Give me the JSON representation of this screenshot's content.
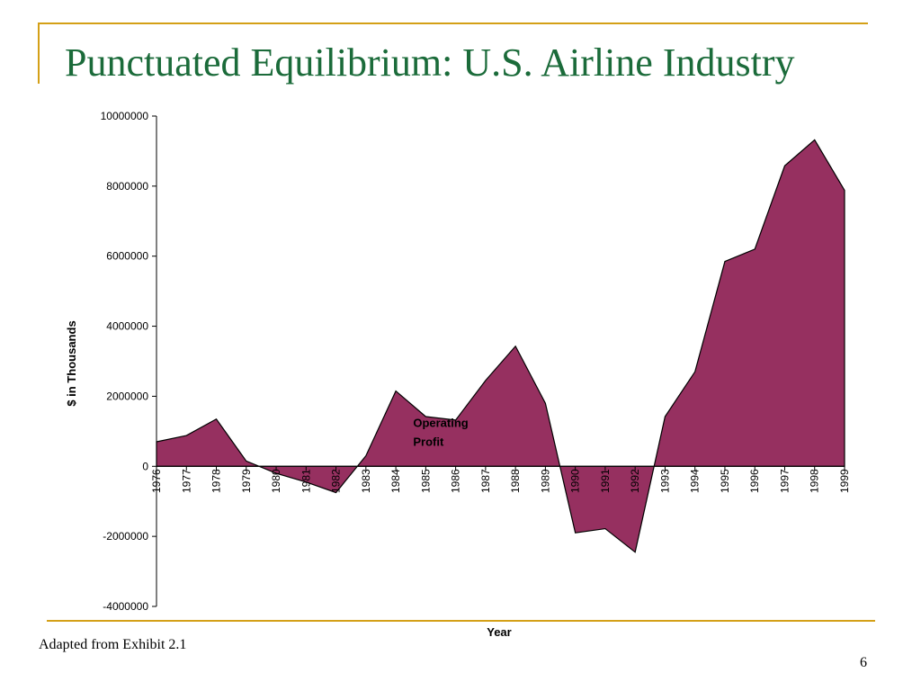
{
  "slide": {
    "title": "Punctuated Equilibrium:  U.S. Airline Industry",
    "footnote": "Adapted from Exhibit 2.1",
    "page_number": "6",
    "colors": {
      "title": "#1b6b3a",
      "rule": "#d4a017",
      "area_fill": "#963060",
      "area_stroke": "#000000"
    }
  },
  "chart_data": {
    "type": "area",
    "title": "",
    "xlabel": "Year",
    "ylabel": "$ in Thousands",
    "ylim": [
      -4000000,
      10000000
    ],
    "yticks": [
      -4000000,
      -2000000,
      0,
      2000000,
      4000000,
      6000000,
      8000000,
      10000000
    ],
    "grid": false,
    "x": [
      "1976",
      "1977",
      "1978",
      "1979",
      "1980",
      "1981",
      "1982",
      "1983",
      "1984",
      "1985",
      "1986",
      "1987",
      "1988",
      "1989",
      "1990",
      "1991",
      "1992",
      "1993",
      "1994",
      "1995",
      "1996",
      "1997",
      "1998",
      "1999"
    ],
    "series": [
      {
        "values": [
          700000,
          880000,
          1350000,
          150000,
          -200000,
          -450000,
          -750000,
          300000,
          2150000,
          1420000,
          1320000,
          2450000,
          3430000,
          1800000,
          -1900000,
          -1780000,
          -2450000,
          1420000,
          2700000,
          5850000,
          6200000,
          8580000,
          9320000,
          7880000
        ]
      }
    ],
    "annotations": [
      {
        "text_lines": [
          "Operating",
          "Profit"
        ],
        "x": "1985",
        "y": 1120000
      }
    ]
  }
}
